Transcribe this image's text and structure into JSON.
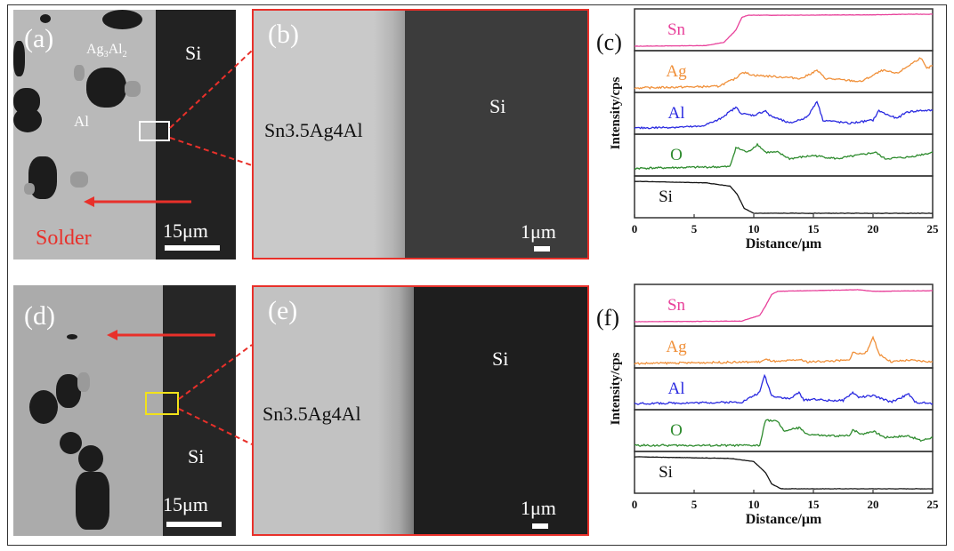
{
  "panels": {
    "a": {
      "label": "(a)",
      "si": "Si",
      "ag3al2": "Ag",
      "ag3al2_sub1": "3",
      "ag3al2_mid": "Al",
      "ag3al2_sub2": "2",
      "al": "Al",
      "solder": "Solder",
      "scale": "15μm",
      "box_color": "#ffffff"
    },
    "b": {
      "label": "(b)",
      "solder": "Sn3.5Ag4Al",
      "si": "Si",
      "scale": "1μm"
    },
    "d": {
      "label": "(d)",
      "si": "Si",
      "scale": "15μm",
      "box_color": "#f2e21a"
    },
    "e": {
      "label": "(e)",
      "solder": "Sn3.5Ag4Al",
      "si": "Si",
      "scale": "1μm"
    },
    "accent_color": "#e8302a"
  },
  "chart_data": [
    {
      "panel_label": "(c)",
      "type": "line",
      "layout": "stacked strips",
      "xlabel": "Distance/μm",
      "ylabel": "Intensity/cps",
      "xlim": [
        0,
        25
      ],
      "xticks": [
        "0",
        "5",
        "10",
        "15",
        "20",
        "25"
      ],
      "grid": false,
      "series": [
        {
          "name": "Sn",
          "color": "#e8409a",
          "points": [
            [
              0,
              0
            ],
            [
              6,
              0.02
            ],
            [
              7.5,
              0.12
            ],
            [
              8.5,
              0.5
            ],
            [
              9,
              0.9
            ],
            [
              9.5,
              0.97
            ],
            [
              12,
              0.97
            ],
            [
              20,
              0.98
            ],
            [
              23,
              1
            ],
            [
              25,
              1
            ]
          ]
        },
        {
          "name": "Ag",
          "color": "#f0903a",
          "points": [
            [
              0,
              0
            ],
            [
              7,
              0.05
            ],
            [
              8.5,
              0.3
            ],
            [
              9,
              0.5
            ],
            [
              10,
              0.4
            ],
            [
              12,
              0.35
            ],
            [
              14,
              0.3
            ],
            [
              15.3,
              0.55
            ],
            [
              16,
              0.3
            ],
            [
              19,
              0.2
            ],
            [
              20.8,
              0.55
            ],
            [
              22,
              0.45
            ],
            [
              24,
              0.95
            ],
            [
              24.5,
              0.6
            ],
            [
              25,
              0.7
            ]
          ]
        },
        {
          "name": "Al",
          "color": "#2a2ae0",
          "points": [
            [
              0,
              0.05
            ],
            [
              5.5,
              0.1
            ],
            [
              7,
              0.3
            ],
            [
              8.5,
              0.7
            ],
            [
              9,
              0.5
            ],
            [
              10,
              0.45
            ],
            [
              11,
              0.6
            ],
            [
              11.3,
              0.45
            ],
            [
              13,
              0.2
            ],
            [
              14.5,
              0.4
            ],
            [
              15.3,
              0.9
            ],
            [
              15.8,
              0.3
            ],
            [
              18,
              0.2
            ],
            [
              20,
              0.3
            ],
            [
              20.5,
              0.6
            ],
            [
              21,
              0.5
            ],
            [
              22,
              0.35
            ],
            [
              22.8,
              0.55
            ],
            [
              24,
              0.6
            ],
            [
              25,
              0.6
            ]
          ]
        },
        {
          "name": "O",
          "color": "#2e8b2e",
          "points": [
            [
              0,
              0.1
            ],
            [
              8,
              0.15
            ],
            [
              8.5,
              0.75
            ],
            [
              9.5,
              0.6
            ],
            [
              10.3,
              0.85
            ],
            [
              11,
              0.6
            ],
            [
              12,
              0.6
            ],
            [
              13,
              0.4
            ],
            [
              15,
              0.5
            ],
            [
              17,
              0.4
            ],
            [
              20.2,
              0.6
            ],
            [
              21,
              0.4
            ],
            [
              23,
              0.45
            ],
            [
              25,
              0.6
            ]
          ]
        },
        {
          "name": "Si",
          "color": "#111111",
          "points": [
            [
              0,
              1
            ],
            [
              6,
              0.95
            ],
            [
              8,
              0.85
            ],
            [
              8.6,
              0.6
            ],
            [
              9.2,
              0.15
            ],
            [
              10,
              0
            ],
            [
              25,
              0
            ]
          ]
        }
      ]
    },
    {
      "panel_label": "(f)",
      "type": "line",
      "layout": "stacked strips",
      "xlabel": "Distance/μm",
      "ylabel": "Intensity/cps",
      "xlim": [
        0,
        25
      ],
      "xticks": [
        "0",
        "5",
        "10",
        "15",
        "20",
        "25"
      ],
      "grid": false,
      "series": [
        {
          "name": "Sn",
          "color": "#e8409a",
          "points": [
            [
              0,
              0
            ],
            [
              9,
              0.02
            ],
            [
              10.5,
              0.2
            ],
            [
              11,
              0.5
            ],
            [
              11.5,
              0.85
            ],
            [
              12,
              0.95
            ],
            [
              18.7,
              1
            ],
            [
              20,
              0.95
            ],
            [
              25,
              0.97
            ]
          ]
        },
        {
          "name": "Ag",
          "color": "#f0903a",
          "points": [
            [
              0,
              0
            ],
            [
              10.5,
              0.05
            ],
            [
              11,
              0.12
            ],
            [
              12,
              0.05
            ],
            [
              13.8,
              0.12
            ],
            [
              14.5,
              0.05
            ],
            [
              18,
              0.1
            ],
            [
              18.3,
              0.35
            ],
            [
              18.8,
              0.3
            ],
            [
              19.5,
              0.35
            ],
            [
              20,
              0.85
            ],
            [
              20.5,
              0.3
            ],
            [
              21.5,
              0.05
            ],
            [
              23,
              0.1
            ],
            [
              25,
              0.05
            ]
          ]
        },
        {
          "name": "Al",
          "color": "#2a2ae0",
          "points": [
            [
              0,
              0.05
            ],
            [
              9,
              0.1
            ],
            [
              10.5,
              0.4
            ],
            [
              10.9,
              0.95
            ],
            [
              11.5,
              0.3
            ],
            [
              13,
              0.2
            ],
            [
              13.8,
              0.4
            ],
            [
              14.2,
              0.15
            ],
            [
              15,
              0.2
            ],
            [
              16,
              0.15
            ],
            [
              17.5,
              0.15
            ],
            [
              18.3,
              0.4
            ],
            [
              18.8,
              0.25
            ],
            [
              20,
              0.3
            ],
            [
              21.5,
              0.1
            ],
            [
              23,
              0.35
            ],
            [
              23.5,
              0.1
            ],
            [
              25,
              0.05
            ]
          ]
        },
        {
          "name": "O",
          "color": "#2e8b2e",
          "points": [
            [
              0,
              0.05
            ],
            [
              10.5,
              0.05
            ],
            [
              11,
              0.85
            ],
            [
              12,
              0.8
            ],
            [
              12.5,
              0.5
            ],
            [
              13.8,
              0.6
            ],
            [
              14.5,
              0.4
            ],
            [
              16,
              0.35
            ],
            [
              18,
              0.35
            ],
            [
              18.3,
              0.55
            ],
            [
              19,
              0.4
            ],
            [
              20,
              0.5
            ],
            [
              21,
              0.3
            ],
            [
              23,
              0.35
            ],
            [
              24,
              0.2
            ],
            [
              25,
              0.3
            ]
          ]
        },
        {
          "name": "Si",
          "color": "#111111",
          "points": [
            [
              0,
              1
            ],
            [
              8,
              0.95
            ],
            [
              10,
              0.85
            ],
            [
              11,
              0.5
            ],
            [
              11.5,
              0.15
            ],
            [
              12.3,
              0
            ],
            [
              25,
              0
            ]
          ]
        }
      ]
    }
  ]
}
